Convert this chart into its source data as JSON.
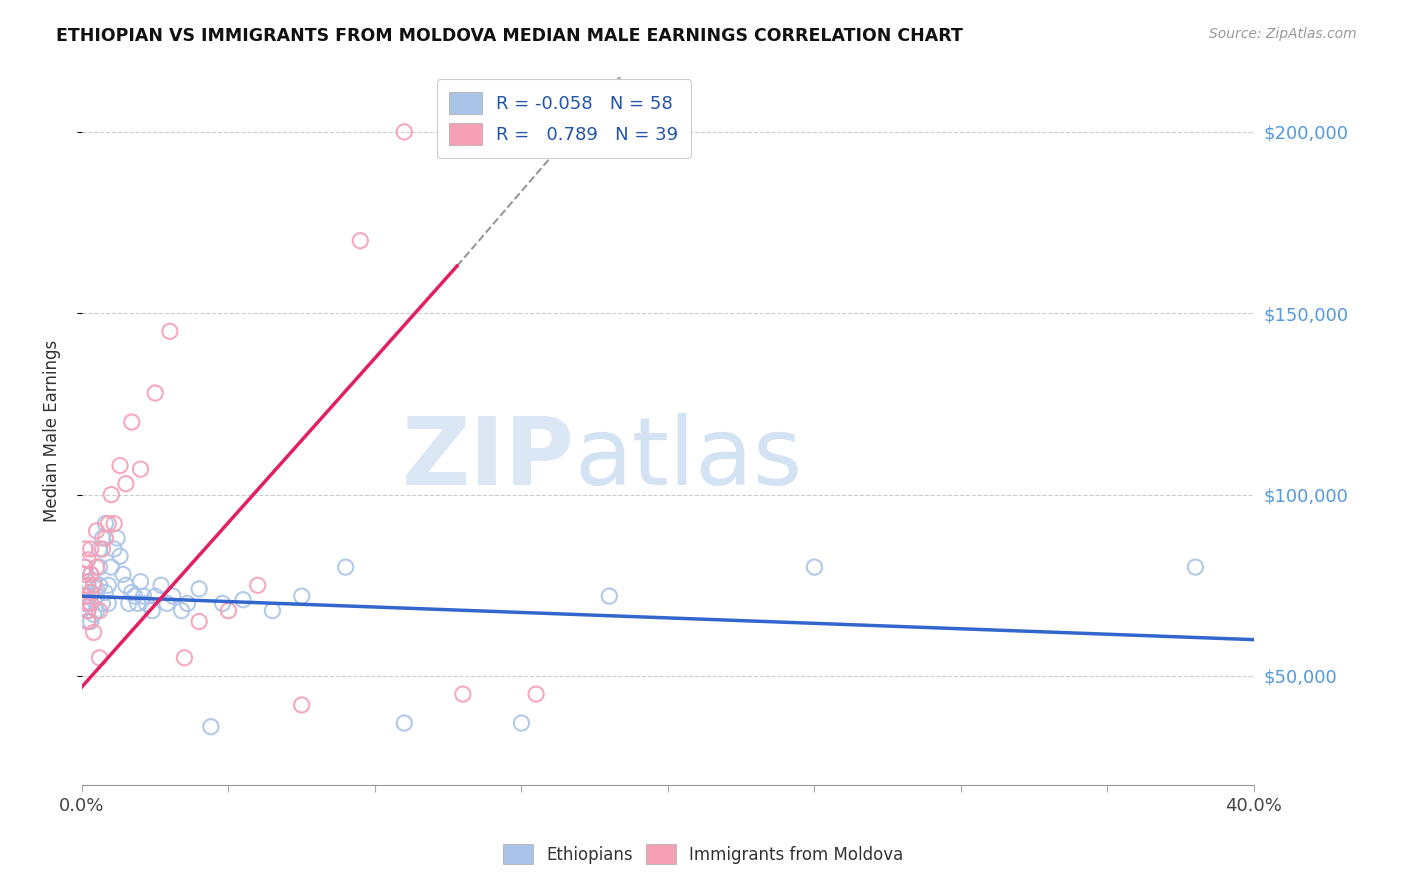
{
  "title": "ETHIOPIAN VS IMMIGRANTS FROM MOLDOVA MEDIAN MALE EARNINGS CORRELATION CHART",
  "source": "Source: ZipAtlas.com",
  "ylabel": "Median Male Earnings",
  "y_ticks": [
    50000,
    100000,
    150000,
    200000
  ],
  "y_tick_labels": [
    "$50,000",
    "$100,000",
    "$150,000",
    "$200,000"
  ],
  "x_min": 0.0,
  "x_max": 0.4,
  "y_min": 20000,
  "y_max": 215000,
  "watermark_zip": "ZIP",
  "watermark_atlas": "atlas",
  "legend_r1": "R = -0.058",
  "legend_n1": "N = 58",
  "legend_r2": "R =   0.789",
  "legend_n2": "N = 39",
  "color_ethiopian": "#aac4e8",
  "color_moldovan": "#f5a0b5",
  "color_line_ethiopian": "#3366cc",
  "color_line_moldovan": "#e02060",
  "eth_line_x0": 0.0,
  "eth_line_x1": 0.4,
  "eth_line_y0": 72000,
  "eth_line_y1": 60000,
  "mol_line_x0": 0.0,
  "mol_line_x1": 0.128,
  "mol_line_y0": 47000,
  "mol_line_y1": 163000,
  "ethiopian_x": [
    0.001,
    0.001,
    0.001,
    0.002,
    0.002,
    0.002,
    0.002,
    0.003,
    0.003,
    0.003,
    0.003,
    0.004,
    0.004,
    0.004,
    0.005,
    0.005,
    0.005,
    0.006,
    0.006,
    0.006,
    0.007,
    0.007,
    0.008,
    0.008,
    0.009,
    0.009,
    0.01,
    0.011,
    0.012,
    0.013,
    0.014,
    0.015,
    0.016,
    0.017,
    0.018,
    0.019,
    0.02,
    0.021,
    0.022,
    0.024,
    0.025,
    0.027,
    0.029,
    0.031,
    0.034,
    0.036,
    0.04,
    0.044,
    0.048,
    0.055,
    0.065,
    0.075,
    0.09,
    0.11,
    0.15,
    0.18,
    0.25,
    0.38
  ],
  "ethiopian_y": [
    70000,
    75000,
    80000,
    65000,
    72000,
    68000,
    76000,
    70000,
    73000,
    78000,
    65000,
    71000,
    67000,
    76000,
    74000,
    68000,
    72000,
    80000,
    75000,
    85000,
    70000,
    88000,
    73000,
    92000,
    70000,
    75000,
    80000,
    85000,
    88000,
    83000,
    78000,
    75000,
    70000,
    73000,
    72000,
    70000,
    76000,
    72000,
    70000,
    68000,
    72000,
    75000,
    70000,
    72000,
    68000,
    70000,
    74000,
    36000,
    70000,
    71000,
    68000,
    72000,
    80000,
    37000,
    37000,
    72000,
    80000,
    80000
  ],
  "moldovan_x": [
    0.001,
    0.001,
    0.001,
    0.001,
    0.002,
    0.002,
    0.002,
    0.002,
    0.002,
    0.003,
    0.003,
    0.003,
    0.003,
    0.004,
    0.004,
    0.005,
    0.005,
    0.006,
    0.006,
    0.007,
    0.008,
    0.009,
    0.01,
    0.011,
    0.013,
    0.015,
    0.017,
    0.02,
    0.025,
    0.03,
    0.035,
    0.04,
    0.05,
    0.06,
    0.075,
    0.095,
    0.11,
    0.13,
    0.155
  ],
  "moldovan_y": [
    72000,
    78000,
    80000,
    85000,
    68000,
    75000,
    70000,
    82000,
    65000,
    78000,
    85000,
    73000,
    70000,
    75000,
    62000,
    80000,
    90000,
    55000,
    68000,
    85000,
    88000,
    92000,
    100000,
    92000,
    108000,
    103000,
    120000,
    107000,
    128000,
    145000,
    55000,
    65000,
    68000,
    75000,
    42000,
    170000,
    200000,
    45000,
    45000
  ]
}
